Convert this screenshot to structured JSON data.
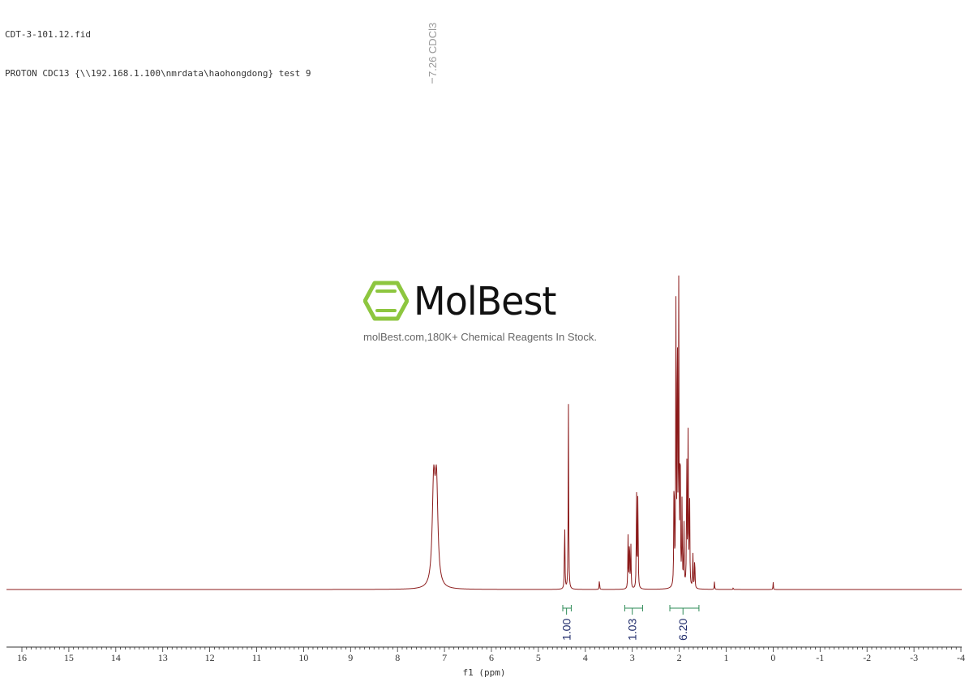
{
  "header": {
    "line1": "CDT-3-101.12.fid",
    "line2": "PROTON CDC13 {\\\\192.168.1.100\\nmrdata\\haohongdong} test 9"
  },
  "watermark": {
    "brand": "MolBest",
    "tagline": "molBest.com,180K+ Chemical Reagents In Stock.",
    "logo_color": "#8dc63f"
  },
  "chart_data": {
    "type": "line",
    "title": "",
    "xlabel": "f1 (ppm)",
    "ylabel": "",
    "xlim": [
      16.3,
      -4.0
    ],
    "x_reversed": true,
    "grid": false,
    "line_color": "#8b1a1a",
    "x_ticks": [
      16,
      15,
      14,
      13,
      12,
      11,
      10,
      9,
      8,
      7,
      6,
      5,
      4,
      3,
      2,
      1,
      0,
      -1,
      -2,
      -3,
      -4
    ],
    "x_tick_labels": [
      "16",
      "15",
      "14",
      "13",
      "12",
      "11",
      "10",
      "9",
      "8",
      "7",
      "6",
      "5",
      "4",
      "3",
      "2",
      "1",
      "0",
      "-1",
      "-2",
      "-3",
      "-4"
    ],
    "peak_labels": [
      {
        "x": 7.26,
        "label": "7.26 CDCl3"
      }
    ],
    "peaks": [
      {
        "x": 7.23,
        "height": 0.32,
        "width": 0.035
      },
      {
        "x": 7.17,
        "height": 0.32,
        "width": 0.035
      },
      {
        "x": 4.44,
        "height": 0.24,
        "width": 0.006
      },
      {
        "x": 4.36,
        "height": 0.61,
        "width": 0.006
      },
      {
        "x": 3.7,
        "height": 0.035,
        "width": 0.005
      },
      {
        "x": 3.09,
        "height": 0.17,
        "width": 0.006
      },
      {
        "x": 3.06,
        "height": 0.18,
        "width": 0.006
      },
      {
        "x": 3.03,
        "height": 0.14,
        "width": 0.006
      },
      {
        "x": 2.91,
        "height": 0.32,
        "width": 0.006
      },
      {
        "x": 2.88,
        "height": 0.34,
        "width": 0.006
      },
      {
        "x": 2.11,
        "height": 0.42,
        "width": 0.006
      },
      {
        "x": 2.07,
        "height": 0.91,
        "width": 0.006
      },
      {
        "x": 2.04,
        "height": 0.97,
        "width": 0.006
      },
      {
        "x": 2.01,
        "height": 0.95,
        "width": 0.006
      },
      {
        "x": 1.98,
        "height": 0.52,
        "width": 0.006
      },
      {
        "x": 1.94,
        "height": 0.28,
        "width": 0.006
      },
      {
        "x": 1.9,
        "height": 0.22,
        "width": 0.006
      },
      {
        "x": 1.84,
        "height": 0.45,
        "width": 0.006
      },
      {
        "x": 1.81,
        "height": 0.53,
        "width": 0.006
      },
      {
        "x": 1.78,
        "height": 0.33,
        "width": 0.006
      },
      {
        "x": 1.71,
        "height": 0.12,
        "width": 0.006
      },
      {
        "x": 1.67,
        "height": 0.11,
        "width": 0.006
      },
      {
        "x": 1.25,
        "height": 0.025,
        "width": 0.005
      },
      {
        "x": 0.85,
        "height": 0.006,
        "width": 0.005
      },
      {
        "x": 0.0,
        "height": 0.028,
        "width": 0.004
      }
    ],
    "integrals": [
      {
        "center": 4.4,
        "start": 4.48,
        "end": 4.3,
        "value": "1.00"
      },
      {
        "center": 3.0,
        "start": 3.16,
        "end": 2.78,
        "value": "1.03"
      },
      {
        "center": 1.92,
        "start": 2.2,
        "end": 1.58,
        "value": "6.20"
      }
    ]
  }
}
